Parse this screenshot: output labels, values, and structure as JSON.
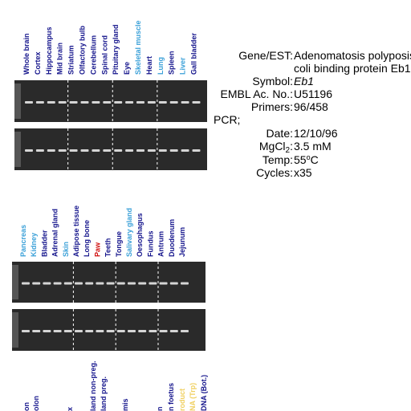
{
  "panels": [
    {
      "lanes": [
        {
          "label": "Whole brain",
          "color": "#14148c"
        },
        {
          "label": "Cortex",
          "color": "#14148c"
        },
        {
          "label": "Hippocampus",
          "color": "#14148c"
        },
        {
          "label": "Mid brain",
          "color": "#14148c"
        },
        {
          "label": "Striatum",
          "color": "#14148c"
        },
        {
          "label": "Olfactory bulb",
          "color": "#14148c"
        },
        {
          "label": "Cerebellum",
          "color": "#14148c"
        },
        {
          "label": "Spinal cord",
          "color": "#14148c"
        },
        {
          "label": "Pituitary gland",
          "color": "#14148c"
        },
        {
          "label": "Eye",
          "color": "#14148c"
        },
        {
          "label": "Skeletal muscle",
          "color": "#3aa0d8"
        },
        {
          "label": "Heart",
          "color": "#14148c"
        },
        {
          "label": "Lung",
          "color": "#3aa0d8"
        },
        {
          "label": "Spleen",
          "color": "#14148c"
        },
        {
          "label": "Liver",
          "color": "#3aa0d8"
        },
        {
          "label": "Gall bladder",
          "color": "#14148c"
        }
      ]
    },
    {
      "lanes": [
        {
          "label": "Pancreas",
          "color": "#3aa0d8"
        },
        {
          "label": "Kidney",
          "color": "#3aa0d8"
        },
        {
          "label": "Bladder",
          "color": "#14148c"
        },
        {
          "label": "Adrenal gland",
          "color": "#14148c"
        },
        {
          "label": "Skin",
          "color": "#3aa0d8"
        },
        {
          "label": "Adipose tissue",
          "color": "#14148c"
        },
        {
          "label": "Long bone",
          "color": "#14148c"
        },
        {
          "label": "Paw",
          "color": "#d01010"
        },
        {
          "label": "Teeth",
          "color": "#14148c"
        },
        {
          "label": "Tongue",
          "color": "#14148c"
        },
        {
          "label": "Salivary gland",
          "color": "#3aa0d8"
        },
        {
          "label": "Oesophagus",
          "color": "#14148c"
        },
        {
          "label": "Fundus",
          "color": "#14148c"
        },
        {
          "label": "Antrum",
          "color": "#14148c"
        },
        {
          "label": "Duodenum",
          "color": "#14148c"
        },
        {
          "label": "Jejunum",
          "color": "#14148c"
        }
      ]
    },
    {
      "lanes": [
        {
          "label": "on",
          "color": "#14148c"
        },
        {
          "label": "olon",
          "color": "#14148c"
        },
        {
          "label": "x",
          "color": "#14148c"
        },
        {
          "label": "land non-preg.",
          "color": "#14148c"
        },
        {
          "label": "land preg.",
          "color": "#14148c"
        },
        {
          "label": "mis",
          "color": "#14148c"
        },
        {
          "label": "n",
          "color": "#14148c"
        },
        {
          "label": "n foetus",
          "color": "#14148c"
        },
        {
          "label": "roduct",
          "color": "#f0d060"
        },
        {
          "label": "NA (Trp)",
          "color": "#f0d060"
        },
        {
          "label": "DNA (Bot.)",
          "color": "#14148c"
        }
      ]
    }
  ],
  "info": {
    "gene": {
      "label": "Gene/EST:",
      "value": [
        "Adenomatosis polyposis",
        "coli binding protein Eb1"
      ]
    },
    "symbol": {
      "label": "Symbol:",
      "value": "Eb1"
    },
    "embl": {
      "label": "EMBL Ac. No.:",
      "value": "U51196"
    },
    "primers": {
      "label": "Primers:",
      "value": "96/458"
    },
    "pcr": "PCR;",
    "date": {
      "label": "Date:",
      "value": "12/10/96"
    },
    "mgcl": {
      "label": "MgCl",
      "sub": "2",
      "colon": ":",
      "value": "3.5 mM"
    },
    "temp": {
      "label": "Temp:",
      "value": "55",
      "sup": "o",
      "unit": "C"
    },
    "cycles": {
      "label": "Cycles:",
      "value": "x35"
    }
  }
}
